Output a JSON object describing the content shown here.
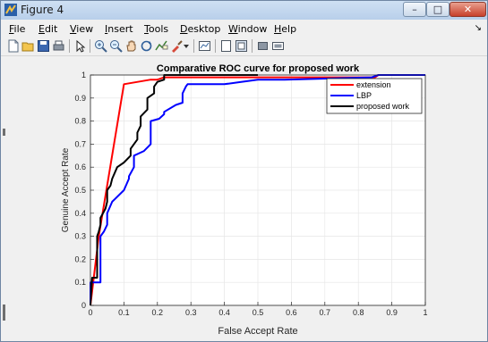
{
  "window": {
    "title": "Figure 4",
    "min_glyph": "–",
    "max_glyph": "□",
    "close_glyph": "✕"
  },
  "menu": {
    "items": [
      {
        "u": "F",
        "rest": "ile"
      },
      {
        "u": "E",
        "rest": "dit"
      },
      {
        "u": "V",
        "rest": "iew"
      },
      {
        "u": "I",
        "rest": "nsert"
      },
      {
        "u": "T",
        "rest": "ools"
      },
      {
        "u": "D",
        "rest": "esktop"
      },
      {
        "u": "W",
        "rest": "indow"
      },
      {
        "u": "H",
        "rest": "elp"
      }
    ],
    "dock_glyph": "↘"
  },
  "toolbar": {
    "icons": [
      "new-figure-icon",
      "open-file-icon",
      "save-icon",
      "print-icon",
      "select-pointer-icon",
      "zoom-in-icon",
      "zoom-out-icon",
      "pan-hand-icon",
      "rotate-3d-icon",
      "data-cursor-icon",
      "brush-icon",
      "brush-dropdown-icon",
      "link-plot-icon",
      "insert-colorbar-icon",
      "insert-legend-icon",
      "hide-plot-tools-icon",
      "show-plot-tools-icon"
    ]
  },
  "chart_data": {
    "type": "line",
    "title": "Comparative ROC curve for proposed work",
    "xlabel": "False Accept Rate",
    "ylabel": "Genuine Accept Rate",
    "xlim": [
      0,
      1
    ],
    "ylim": [
      0,
      1
    ],
    "xticks": [
      "0",
      "0.1",
      "0.2",
      "0.3",
      "0.4",
      "0.5",
      "0.6",
      "0.7",
      "0.8",
      "0.9",
      "1"
    ],
    "yticks": [
      "0",
      "0.1",
      "0.2",
      "0.3",
      "0.4",
      "0.5",
      "0.6",
      "0.7",
      "0.8",
      "0.9",
      "1"
    ],
    "grid": true,
    "legend_position": "top-right",
    "series": [
      {
        "name": "extension",
        "color": "#ff0000",
        "x": [
          0,
          0.025,
          0.1,
          0.18,
          0.2,
          0.22,
          0.5,
          0.55,
          0.85,
          0.86,
          1.0
        ],
        "y": [
          0,
          0.3,
          0.96,
          0.98,
          0.98,
          0.99,
          0.99,
          0.99,
          0.99,
          1.0,
          1.0
        ]
      },
      {
        "name": "LBP",
        "color": "#0000ff",
        "x": [
          0,
          0.0,
          0.03,
          0.03,
          0.04,
          0.05,
          0.05,
          0.065,
          0.1,
          0.115,
          0.115,
          0.13,
          0.13,
          0.16,
          0.18,
          0.18,
          0.205,
          0.22,
          0.22,
          0.255,
          0.275,
          0.275,
          0.285,
          0.29,
          0.4,
          0.45,
          0.5,
          0.57,
          0.58,
          0.84,
          0.84,
          0.86,
          1.0
        ],
        "y": [
          0,
          0.1,
          0.1,
          0.3,
          0.32,
          0.35,
          0.4,
          0.45,
          0.5,
          0.55,
          0.56,
          0.6,
          0.65,
          0.67,
          0.7,
          0.8,
          0.81,
          0.83,
          0.84,
          0.87,
          0.88,
          0.92,
          0.95,
          0.96,
          0.96,
          0.97,
          0.98,
          0.98,
          0.98,
          0.99,
          0.99,
          1.0,
          1.0
        ]
      },
      {
        "name": "proposed work",
        "color": "#000000",
        "x": [
          0,
          0.005,
          0.02,
          0.02,
          0.025,
          0.03,
          0.03,
          0.045,
          0.05,
          0.05,
          0.06,
          0.065,
          0.08,
          0.1,
          0.12,
          0.12,
          0.13,
          0.14,
          0.14,
          0.15,
          0.15,
          0.17,
          0.17,
          0.19,
          0.19,
          0.2,
          0.22,
          0.22,
          0.5
        ],
        "y": [
          0,
          0.12,
          0.12,
          0.3,
          0.32,
          0.35,
          0.38,
          0.42,
          0.45,
          0.5,
          0.52,
          0.55,
          0.6,
          0.62,
          0.65,
          0.68,
          0.7,
          0.72,
          0.75,
          0.78,
          0.82,
          0.85,
          0.9,
          0.92,
          0.95,
          0.97,
          0.98,
          1.0,
          1.0
        ]
      }
    ]
  }
}
